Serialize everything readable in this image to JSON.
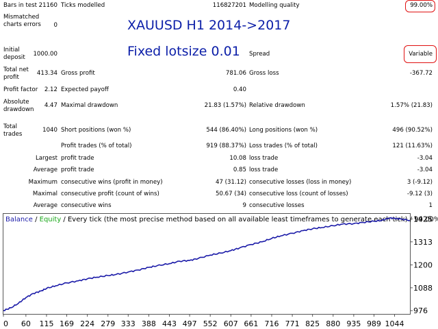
{
  "report": {
    "col1": [
      {
        "label": "Bars in test",
        "value": "21160"
      },
      {
        "label": "Mismatched charts errors",
        "value": "0"
      },
      {
        "label": "Initial deposit",
        "value": "1000.00"
      },
      {
        "label": "Total net profit",
        "value": "413.34"
      },
      {
        "label": "Profit factor",
        "value": "2.12"
      },
      {
        "label": "Absolute drawdown",
        "value": "4.47"
      },
      {
        "label": "Total trades",
        "value": "1040"
      }
    ],
    "col2": [
      {
        "label": "Ticks modelled",
        "value": "116827201"
      },
      {
        "label": "Gross profit",
        "value": "781.06"
      },
      {
        "label": "Expected payoff",
        "value": "0.40"
      },
      {
        "label": "Maximal drawdown",
        "value": "21.83 (1.57%)"
      },
      {
        "label": "Short positions (won %)",
        "value": "544 (86.40%)"
      },
      {
        "label": "Profit trades (% of total)",
        "value": "919 (88.37%)"
      },
      {
        "label": "profit trade",
        "value": "10.08",
        "prefix": "Largest"
      },
      {
        "label": "profit trade",
        "value": "0.85",
        "prefix": "Average"
      },
      {
        "label": "consecutive wins (profit in money)",
        "value": "47 (31.12)",
        "prefix": "Maximum"
      },
      {
        "label": "consecutive profit (count of wins)",
        "value": "50.67 (34)",
        "prefix": "Maximal"
      },
      {
        "label": "consecutive wins",
        "value": "9",
        "prefix": "Average"
      }
    ],
    "col3": [
      {
        "label": "Modelling quality",
        "value": "99.00%"
      },
      {
        "label": "Spread",
        "value": "Variable"
      },
      {
        "label": "Gross loss",
        "value": "-367.72"
      },
      {
        "label": "Relative drawdown",
        "value": "1.57% (21.83)"
      },
      {
        "label": "Long positions (won %)",
        "value": "496 (90.52%)"
      },
      {
        "label": "Loss trades (% of total)",
        "value": "121 (11.63%)"
      },
      {
        "label": "loss trade",
        "value": "-3.04"
      },
      {
        "label": "loss trade",
        "value": "-3.04"
      },
      {
        "label": "consecutive losses (loss in money)",
        "value": "3 (-9.12)"
      },
      {
        "label": "consecutive loss (count of losses)",
        "value": "-9.12 (3)"
      },
      {
        "label": "consecutive losses",
        "value": "1"
      }
    ]
  },
  "overlay": {
    "line1": "XAUUSD H1 2014->2017",
    "line2": "Fixed lotsize 0.01"
  },
  "colors": {
    "balance": "#1a1aa8",
    "equity": "#1aa81a",
    "annotation": "#0b1ea8",
    "highlight": "#e01010"
  },
  "legend": {
    "balance": "Balance",
    "sep": " / ",
    "equity": "Equity",
    "rest": " / Every tick (the most precise method based on all available least timeframes to generate each tick) / 99.00%"
  },
  "chart_data": {
    "type": "line",
    "title": "",
    "xlabel": "",
    "ylabel": "",
    "x_ticks": [
      "0",
      "60",
      "115",
      "169",
      "224",
      "279",
      "333",
      "388",
      "443",
      "497",
      "552",
      "607",
      "661",
      "716",
      "771",
      "825",
      "880",
      "935",
      "989",
      "1044"
    ],
    "y_ticks": [
      "976",
      "1088",
      "1200",
      "1313",
      "1425"
    ],
    "xlim": [
      0,
      1085
    ],
    "ylim": [
      960,
      1450
    ],
    "series": [
      {
        "name": "Balance",
        "x": [
          0,
          20,
          40,
          60,
          80,
          100,
          115,
          140,
          169,
          200,
          224,
          250,
          279,
          300,
          333,
          360,
          388,
          410,
          443,
          470,
          497,
          520,
          552,
          580,
          607,
          630,
          661,
          690,
          716,
          740,
          771,
          800,
          825,
          850,
          880,
          905,
          935,
          960,
          989,
          1010,
          1030,
          1044,
          1060,
          1085
        ],
        "y": [
          976,
          990,
          1012,
          1040,
          1060,
          1072,
          1085,
          1098,
          1112,
          1122,
          1132,
          1140,
          1148,
          1153,
          1165,
          1175,
          1188,
          1196,
          1206,
          1218,
          1222,
          1232,
          1248,
          1258,
          1270,
          1283,
          1300,
          1313,
          1330,
          1342,
          1355,
          1368,
          1377,
          1383,
          1392,
          1400,
          1402,
          1408,
          1414,
          1418,
          1430,
          1428,
          1425,
          1418
        ]
      }
    ]
  }
}
